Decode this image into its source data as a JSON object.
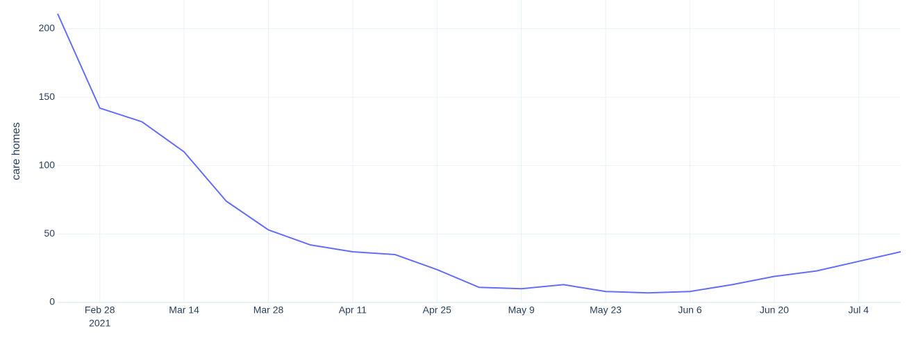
{
  "chart_data": {
    "type": "line",
    "y_label": "care homes",
    "x_year": "2021",
    "x": [
      "2021-02-21",
      "2021-02-28",
      "2021-03-07",
      "2021-03-14",
      "2021-03-21",
      "2021-03-28",
      "2021-04-04",
      "2021-04-11",
      "2021-04-18",
      "2021-04-25",
      "2021-05-02",
      "2021-05-09",
      "2021-05-16",
      "2021-05-23",
      "2021-05-30",
      "2021-06-06",
      "2021-06-13",
      "2021-06-20",
      "2021-06-27",
      "2021-07-04",
      "2021-07-11"
    ],
    "series": [
      {
        "color": "#636efa",
        "values": [
          211,
          142,
          132,
          110,
          74,
          53,
          42,
          37,
          35,
          24,
          11,
          10,
          13,
          8,
          7,
          8,
          13,
          19,
          23,
          30,
          37
        ]
      }
    ],
    "xlim": [
      "2021-02-21",
      "2021-07-11"
    ],
    "xticks": [
      {
        "value": "2021-02-28",
        "label": "Feb 28"
      },
      {
        "value": "2021-03-14",
        "label": "Mar 14"
      },
      {
        "value": "2021-03-28",
        "label": "Mar 28"
      },
      {
        "value": "2021-04-11",
        "label": "Apr 11"
      },
      {
        "value": "2021-04-25",
        "label": "Apr 25"
      },
      {
        "value": "2021-05-09",
        "label": "May 9"
      },
      {
        "value": "2021-05-23",
        "label": "May 23"
      },
      {
        "value": "2021-06-06",
        "label": "Jun 6"
      },
      {
        "value": "2021-06-20",
        "label": "Jun 20"
      },
      {
        "value": "2021-07-04",
        "label": "Jul 4"
      }
    ],
    "ylim": [
      0,
      221
    ],
    "yticks": [
      0,
      50,
      100,
      150,
      200
    ],
    "grid": true
  }
}
